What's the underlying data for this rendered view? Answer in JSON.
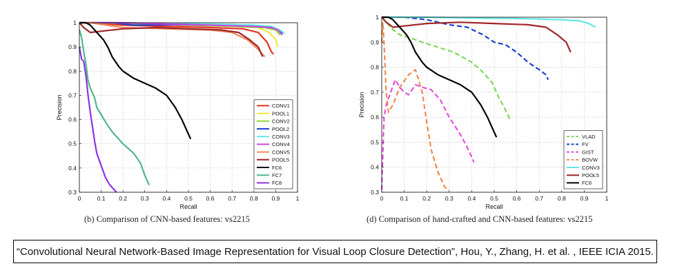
{
  "chart_data": [
    {
      "type": "line",
      "caption": "(b) Comparison of CNN-based features: vs2215",
      "xlabel": "Recall",
      "ylabel": "Precision",
      "xlim": [
        0,
        1
      ],
      "ylim": [
        0.3,
        1
      ],
      "xticks": [
        0,
        0.1,
        0.2,
        0.3,
        0.4,
        0.5,
        0.6,
        0.7,
        0.8,
        0.9,
        1
      ],
      "yticks": [
        0.3,
        0.4,
        0.5,
        0.6,
        0.7,
        0.8,
        0.9,
        1
      ],
      "xtick_labels": [
        "0",
        "0.1",
        "0.2",
        "0.3",
        "0.4",
        "0.5",
        "0.6",
        "0.7",
        "0.8",
        "0.9",
        "1"
      ],
      "ytick_labels": [
        "0.3",
        "0.4",
        "0.5",
        "0.6",
        "0.7",
        "0.8",
        "0.9",
        "1"
      ],
      "grid": true,
      "legend_position": "bottom-right",
      "series": [
        {
          "name": "CONV1",
          "color": "#e5331f",
          "dash": "solid",
          "x": [
            0,
            0.05,
            0.2,
            0.4,
            0.6,
            0.75,
            0.82,
            0.86,
            0.88,
            0.89
          ],
          "y": [
            1,
            1,
            0.99,
            0.985,
            0.98,
            0.975,
            0.96,
            0.92,
            0.88,
            0.87
          ]
        },
        {
          "name": "POOL1",
          "color": "#f5e83a",
          "dash": "solid",
          "x": [
            0,
            0.1,
            0.3,
            0.5,
            0.7,
            0.82,
            0.87,
            0.9,
            0.91
          ],
          "y": [
            1,
            1,
            0.995,
            0.99,
            0.985,
            0.98,
            0.96,
            0.93,
            0.9
          ]
        },
        {
          "name": "CONV2",
          "color": "#8fd62f",
          "dash": "solid",
          "x": [
            0,
            0.1,
            0.3,
            0.5,
            0.7,
            0.85,
            0.9,
            0.92
          ],
          "y": [
            1,
            1,
            0.995,
            0.99,
            0.985,
            0.98,
            0.97,
            0.95
          ]
        },
        {
          "name": "POOL2",
          "color": "#1f3fd1",
          "dash": "solid",
          "x": [
            0,
            0.15,
            0.25,
            0.45,
            0.65,
            0.8,
            0.88,
            0.92,
            0.93
          ],
          "y": [
            1,
            1,
            0.99,
            0.992,
            0.99,
            0.985,
            0.98,
            0.97,
            0.955
          ]
        },
        {
          "name": "CONV3",
          "color": "#5fe8e6",
          "dash": "solid",
          "x": [
            0,
            0.2,
            0.4,
            0.6,
            0.8,
            0.88,
            0.92,
            0.94
          ],
          "y": [
            1,
            1,
            0.997,
            0.995,
            0.99,
            0.985,
            0.97,
            0.955
          ]
        },
        {
          "name": "CONV4",
          "color": "#c944e0",
          "dash": "solid",
          "x": [
            0,
            0.2,
            0.4,
            0.6,
            0.8,
            0.88,
            0.91,
            0.93
          ],
          "y": [
            1,
            1,
            0.995,
            0.99,
            0.985,
            0.98,
            0.97,
            0.95
          ]
        },
        {
          "name": "CONV5",
          "color": "#f08a5d",
          "dash": "solid",
          "x": [
            0,
            0.05,
            0.2,
            0.4,
            0.6,
            0.7,
            0.77,
            0.82,
            0.85
          ],
          "y": [
            1,
            1,
            0.98,
            0.975,
            0.97,
            0.96,
            0.93,
            0.89,
            0.86
          ]
        },
        {
          "name": "POOL5",
          "color": "#a02428",
          "dash": "solid",
          "x": [
            0,
            0.02,
            0.05,
            0.1,
            0.2,
            0.35,
            0.5,
            0.65,
            0.73,
            0.78,
            0.82,
            0.84
          ],
          "y": [
            1,
            0.98,
            0.96,
            0.965,
            0.975,
            0.98,
            0.975,
            0.97,
            0.96,
            0.93,
            0.9,
            0.86
          ]
        },
        {
          "name": "FC6",
          "color": "#000000",
          "dash": "solid",
          "x": [
            0,
            0.03,
            0.05,
            0.07,
            0.09,
            0.11,
            0.13,
            0.15,
            0.18,
            0.2,
            0.25,
            0.3,
            0.35,
            0.4,
            0.44,
            0.47,
            0.5,
            0.51
          ],
          "y": [
            1,
            1,
            0.99,
            0.97,
            0.95,
            0.93,
            0.9,
            0.86,
            0.82,
            0.8,
            0.77,
            0.75,
            0.73,
            0.7,
            0.65,
            0.6,
            0.54,
            0.52
          ]
        },
        {
          "name": "FC7",
          "color": "#4eb88a",
          "dash": "solid",
          "x": [
            0,
            0.01,
            0.02,
            0.03,
            0.04,
            0.05,
            0.07,
            0.08,
            0.1,
            0.12,
            0.15,
            0.2,
            0.25,
            0.28,
            0.3,
            0.32
          ],
          "y": [
            0.97,
            0.94,
            0.88,
            0.83,
            0.76,
            0.73,
            0.69,
            0.65,
            0.62,
            0.59,
            0.55,
            0.5,
            0.46,
            0.42,
            0.37,
            0.33
          ]
        },
        {
          "name": "FC8",
          "color": "#8b34e0",
          "dash": "solid",
          "x": [
            0,
            0.01,
            0.02,
            0.03,
            0.04,
            0.05,
            0.06,
            0.07,
            0.08,
            0.1,
            0.12,
            0.14,
            0.16,
            0.17
          ],
          "y": [
            0.9,
            0.85,
            0.84,
            0.78,
            0.7,
            0.63,
            0.57,
            0.51,
            0.46,
            0.41,
            0.36,
            0.33,
            0.31,
            0.3
          ]
        }
      ]
    },
    {
      "type": "line",
      "caption": "(d) Comparison of hand-crafted and CNN-based features: vs2215",
      "xlabel": "Recall",
      "ylabel": "Precision",
      "xlim": [
        0,
        1
      ],
      "ylim": [
        0.3,
        1
      ],
      "xticks": [
        0,
        0.1,
        0.2,
        0.3,
        0.4,
        0.5,
        0.6,
        0.7,
        0.8,
        0.9,
        1
      ],
      "yticks": [
        0.3,
        0.4,
        0.5,
        0.6,
        0.7,
        0.8,
        0.9,
        1
      ],
      "xtick_labels": [
        "0",
        "0.1",
        "0.2",
        "0.3",
        "0.4",
        "0.5",
        "0.6",
        "0.7",
        "0.8",
        "0.9",
        "1"
      ],
      "ytick_labels": [
        "0.3",
        "0.4",
        "0.5",
        "0.6",
        "0.7",
        "0.8",
        "0.9",
        "1"
      ],
      "grid": true,
      "legend_position": "bottom-right",
      "series": [
        {
          "name": "VLAD",
          "color": "#7ed957",
          "dash": "dashed",
          "x": [
            0,
            0.03,
            0.05,
            0.08,
            0.12,
            0.18,
            0.25,
            0.32,
            0.4,
            0.45,
            0.49,
            0.52,
            0.55,
            0.57
          ],
          "y": [
            1,
            0.97,
            0.95,
            0.93,
            0.92,
            0.9,
            0.88,
            0.86,
            0.82,
            0.78,
            0.74,
            0.68,
            0.63,
            0.59
          ]
        },
        {
          "name": "FV",
          "color": "#1f3fd1",
          "dash": "dashed",
          "x": [
            0,
            0.1,
            0.2,
            0.3,
            0.38,
            0.45,
            0.5,
            0.55,
            0.6,
            0.65,
            0.7,
            0.73,
            0.74
          ],
          "y": [
            1,
            1,
            0.99,
            0.97,
            0.96,
            0.93,
            0.9,
            0.89,
            0.86,
            0.82,
            0.79,
            0.77,
            0.75
          ]
        },
        {
          "name": "GIST",
          "color": "#e44fe0",
          "dash": "dashed",
          "x": [
            0,
            0.01,
            0.02,
            0.04,
            0.06,
            0.08,
            0.1,
            0.12,
            0.15,
            0.18,
            0.22,
            0.26,
            0.3,
            0.35,
            0.38,
            0.4,
            0.41
          ],
          "y": [
            0.31,
            0.6,
            0.65,
            0.7,
            0.75,
            0.72,
            0.7,
            0.69,
            0.73,
            0.72,
            0.71,
            0.67,
            0.6,
            0.53,
            0.48,
            0.44,
            0.42
          ]
        },
        {
          "name": "BOVW",
          "color": "#ef8a55",
          "dash": "dashed",
          "x": [
            0,
            0.005,
            0.01,
            0.02,
            0.03,
            0.05,
            0.08,
            0.12,
            0.15,
            0.18,
            0.2,
            0.22,
            0.25,
            0.28,
            0.3
          ],
          "y": [
            0.9,
            0.98,
            0.9,
            0.7,
            0.62,
            0.65,
            0.72,
            0.77,
            0.79,
            0.7,
            0.58,
            0.47,
            0.38,
            0.32,
            0.31
          ]
        },
        {
          "name": "CONV3",
          "color": "#5fe8e6",
          "dash": "solid",
          "x": [
            0,
            0.2,
            0.4,
            0.6,
            0.8,
            0.88,
            0.92,
            0.95
          ],
          "y": [
            1,
            1,
            0.997,
            0.995,
            0.99,
            0.985,
            0.975,
            0.96
          ]
        },
        {
          "name": "POOL5",
          "color": "#a02428",
          "dash": "solid",
          "x": [
            0,
            0.02,
            0.05,
            0.1,
            0.2,
            0.35,
            0.5,
            0.65,
            0.73,
            0.78,
            0.82,
            0.84
          ],
          "y": [
            1,
            0.98,
            0.96,
            0.965,
            0.975,
            0.98,
            0.975,
            0.97,
            0.96,
            0.93,
            0.9,
            0.86
          ]
        },
        {
          "name": "FC6",
          "color": "#000000",
          "dash": "solid",
          "x": [
            0,
            0.03,
            0.05,
            0.07,
            0.09,
            0.11,
            0.13,
            0.15,
            0.18,
            0.2,
            0.25,
            0.3,
            0.35,
            0.4,
            0.44,
            0.47,
            0.5,
            0.51
          ],
          "y": [
            1,
            1,
            0.99,
            0.97,
            0.95,
            0.93,
            0.9,
            0.86,
            0.82,
            0.8,
            0.77,
            0.75,
            0.73,
            0.7,
            0.65,
            0.6,
            0.54,
            0.52
          ]
        }
      ]
    }
  ],
  "citation": "“Convolutional Neural Network-Based Image Representation for Visual Loop Closure Detection”, Hou, Y., Zhang, H. et al. , IEEE ICIA 2015."
}
